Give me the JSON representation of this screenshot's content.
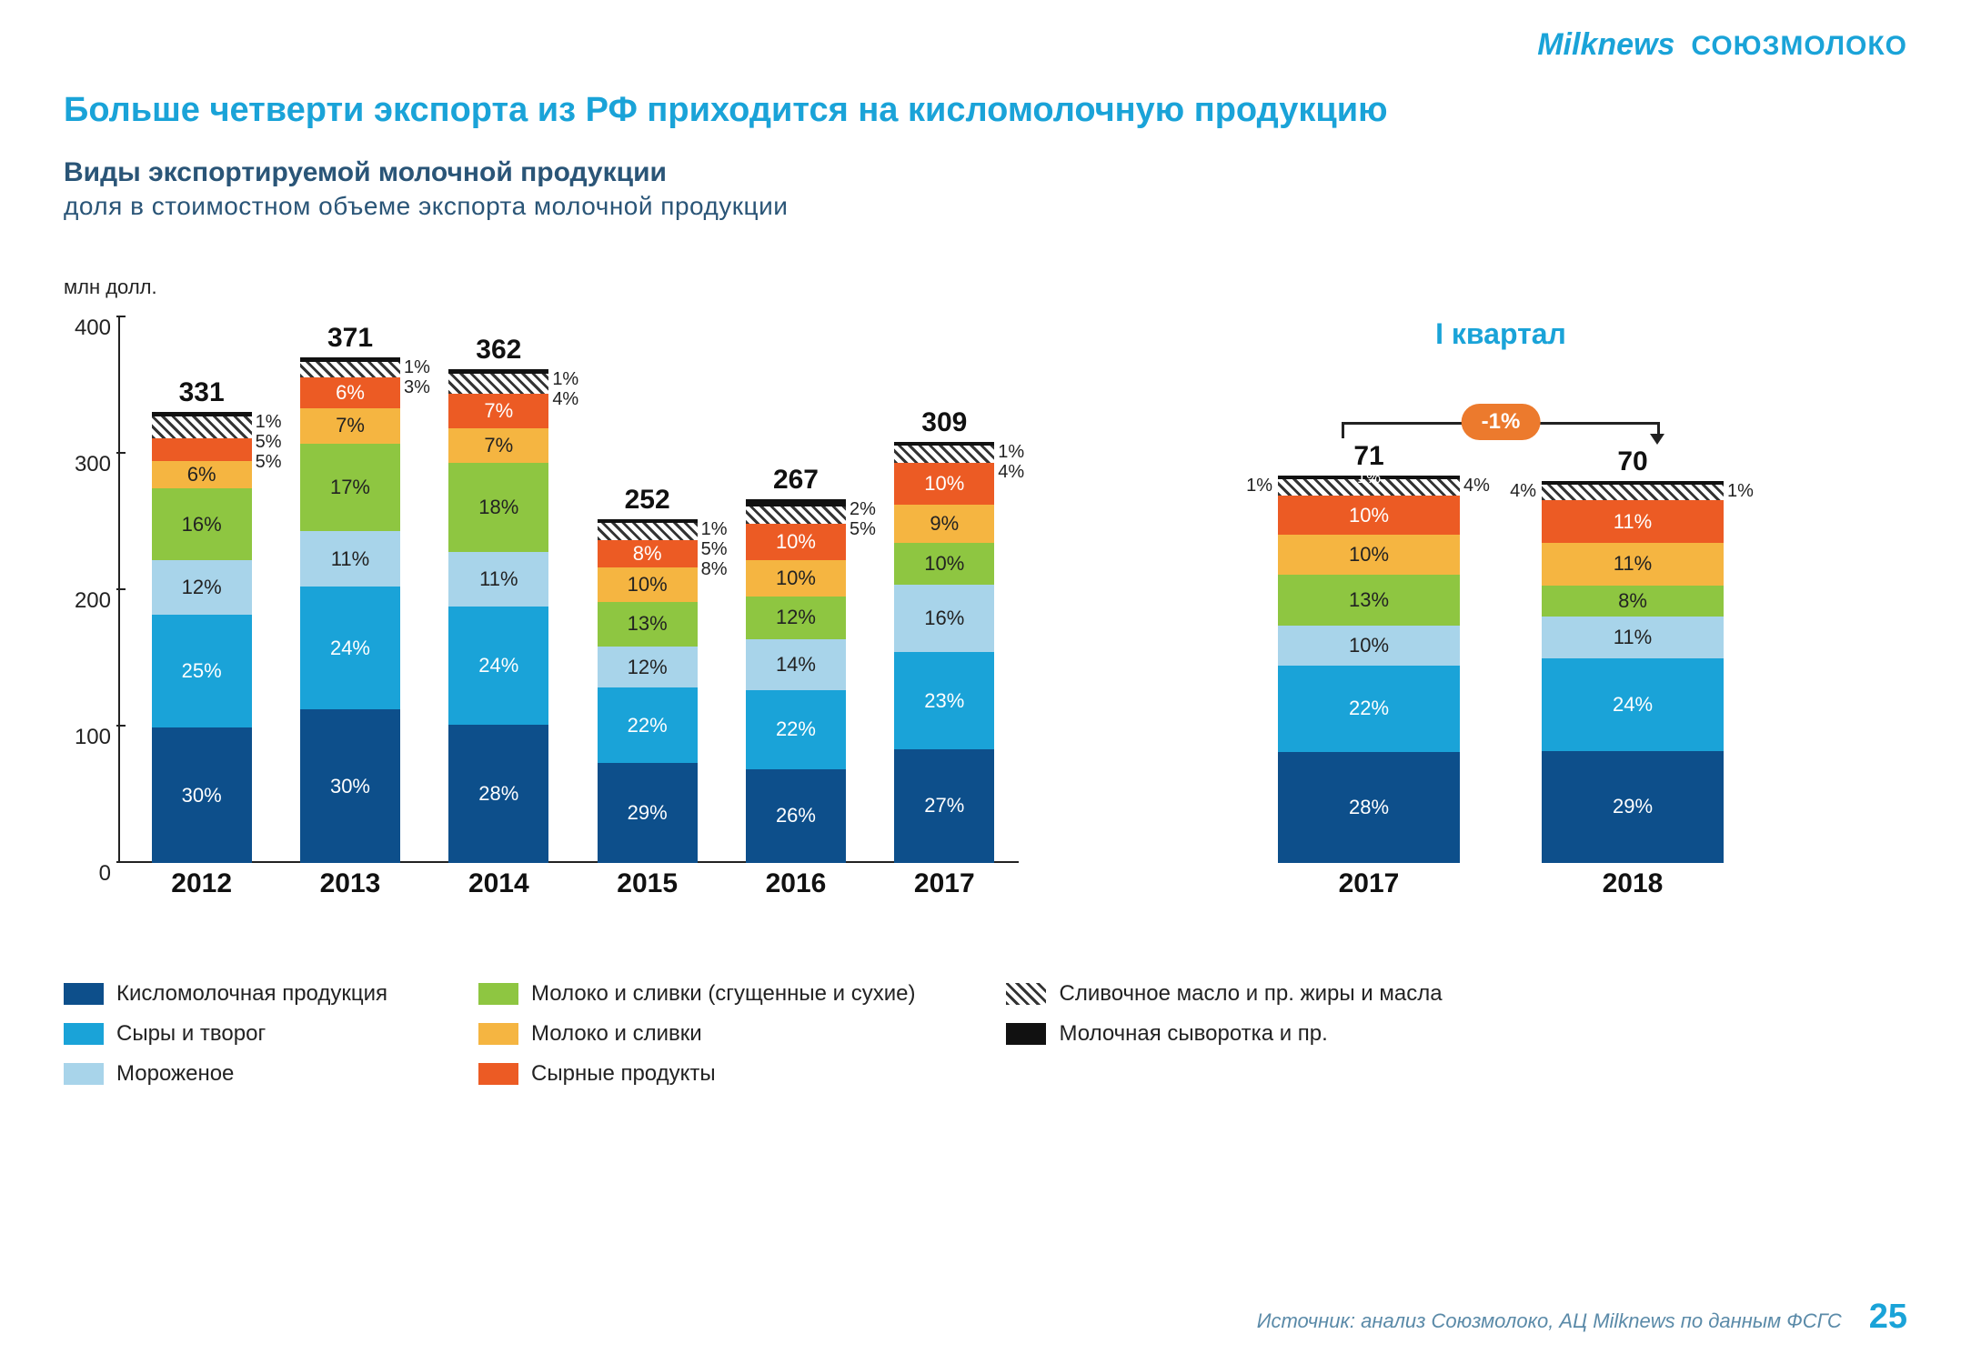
{
  "logos": {
    "milknews": "Milknews",
    "milknews_color": "#1aa3d8",
    "soyuz": "СОЮЗМОЛОКО",
    "soyuz_color": "#1aa3d8"
  },
  "title": {
    "text": "Больше четверти экспорта из РФ приходится на кисломолочную продукцию",
    "color": "#1aa3d8"
  },
  "subtitle": "Виды экспортируемой молочной продукции",
  "subtitle2": "доля в стоимостном объеме экспорта молочной продукции",
  "unit": "млн долл.",
  "right_title": {
    "text": "I квартал",
    "color": "#1aa3d8"
  },
  "change_badge": "-1%",
  "yaxis": {
    "min": 0,
    "max": 400,
    "step": 100,
    "ticks": [
      "0",
      "100",
      "200",
      "300",
      "400"
    ]
  },
  "colors": {
    "kislo": "#0d4f8b",
    "cheese": "#1aa3d8",
    "ice": "#a8d4ea",
    "milk_dry": "#8ec641",
    "milk": "#f5b541",
    "cheese_prod": "#ec5b24",
    "butter_hatch": "hatch",
    "whey": "#111111"
  },
  "series_order": [
    "kislo",
    "cheese",
    "ice",
    "milk_dry",
    "milk",
    "cheese_prod",
    "butter_hatch",
    "whey"
  ],
  "left_chart": {
    "years": [
      "2012",
      "2013",
      "2014",
      "2015",
      "2016",
      "2017"
    ],
    "totals": [
      331,
      371,
      362,
      252,
      267,
      309
    ],
    "bars": [
      {
        "segs": {
          "kislo": 30,
          "cheese": 25,
          "ice": 12,
          "milk_dry": 16,
          "milk": 6,
          "cheese_prod": 5,
          "butter_hatch": 5,
          "whey": 1
        },
        "side": [
          "1%",
          "5%",
          "5%"
        ]
      },
      {
        "segs": {
          "kislo": 30,
          "cheese": 24,
          "ice": 11,
          "milk_dry": 17,
          "milk": 7,
          "cheese_prod": 6,
          "butter_hatch": 3,
          "whey": 1
        },
        "side": [
          "1%",
          "3%"
        ]
      },
      {
        "segs": {
          "kislo": 28,
          "cheese": 24,
          "ice": 11,
          "milk_dry": 18,
          "milk": 7,
          "cheese_prod": 7,
          "butter_hatch": 4,
          "whey": 1
        },
        "side": [
          "1%",
          "4%"
        ]
      },
      {
        "segs": {
          "kislo": 29,
          "cheese": 22,
          "ice": 12,
          "milk_dry": 13,
          "milk": 10,
          "cheese_prod": 8,
          "butter_hatch": 5,
          "whey": 1
        },
        "side": [
          "1%",
          "5%",
          "8%"
        ]
      },
      {
        "segs": {
          "kislo": 26,
          "cheese": 22,
          "ice": 14,
          "milk_dry": 12,
          "milk": 10,
          "cheese_prod": 10,
          "butter_hatch": 5,
          "whey": 2
        },
        "side": [
          "2%",
          "5%"
        ]
      },
      {
        "segs": {
          "kislo": 27,
          "cheese": 23,
          "ice": 16,
          "milk_dry": 10,
          "milk": 9,
          "cheese_prod": 10,
          "butter_hatch": 4,
          "whey": 1
        },
        "side": [
          "1%",
          "4%"
        ]
      }
    ]
  },
  "right_chart": {
    "years": [
      "2017",
      "2018"
    ],
    "totals": [
      71,
      70
    ],
    "bars": [
      {
        "segs": {
          "kislo": 28,
          "cheese": 22,
          "ice": 10,
          "milk_dry": 13,
          "milk": 10,
          "cheese_prod": 10,
          "butter_hatch": 4,
          "whey": 1
        },
        "side": [
          "4%"
        ],
        "side_left": "1%"
      },
      {
        "segs": {
          "kislo": 29,
          "cheese": 24,
          "ice": 11,
          "milk_dry": 8,
          "milk": 11,
          "cheese_prod": 11,
          "butter_hatch": 4,
          "whey": 1
        },
        "side": [
          "1%"
        ],
        "side_left": "4%"
      }
    ],
    "scale_max": 100
  },
  "legend": [
    [
      {
        "color": "kislo",
        "label": "Кисломолочная продукция"
      },
      {
        "color": "cheese",
        "label": "Сыры и творог"
      },
      {
        "color": "ice",
        "label": "Мороженое"
      }
    ],
    [
      {
        "color": "milk_dry",
        "label": "Молоко и сливки (сгущенные и сухие)"
      },
      {
        "color": "milk",
        "label": "Молоко и сливки"
      },
      {
        "color": "cheese_prod",
        "label": "Сырные продукты"
      }
    ],
    [
      {
        "color": "butter_hatch",
        "label": "Сливочное масло и пр. жиры и масла"
      },
      {
        "color": "whey",
        "label": "Молочная сыворотка и пр."
      }
    ]
  ],
  "source": "Источник: анализ Союзмолоко, АЦ Milknews по данным ФСГС",
  "page_num": "25",
  "page_num_color": "#1aa3d8",
  "seg_label_threshold": 6,
  "seg_dark_text": [
    "ice",
    "milk_dry",
    "milk"
  ]
}
